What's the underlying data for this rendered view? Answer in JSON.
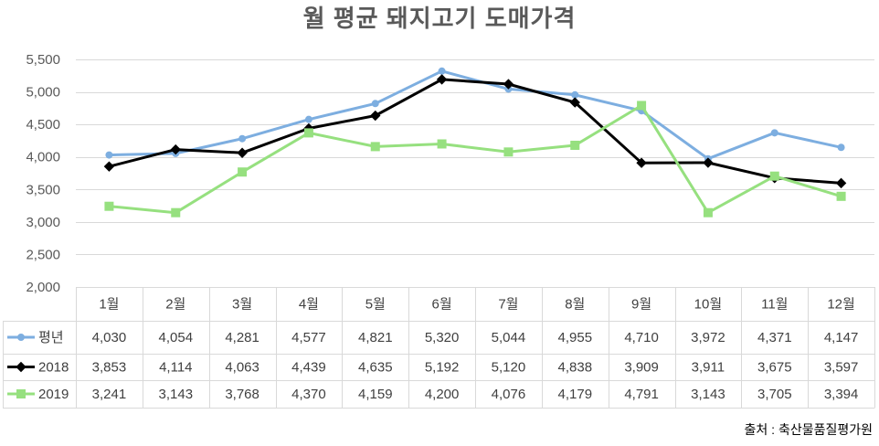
{
  "chart_data": {
    "type": "line",
    "title": "월 평균 돼지고기 도매가격",
    "categories": [
      "1월",
      "2월",
      "3월",
      "4월",
      "5월",
      "6월",
      "7월",
      "8월",
      "9월",
      "10월",
      "11월",
      "12월"
    ],
    "series": [
      {
        "name": "평년",
        "values": [
          4030,
          4054,
          4281,
          4577,
          4821,
          5320,
          5044,
          4955,
          4710,
          3972,
          4371,
          4147
        ],
        "color": "#7DAEE0",
        "marker": "circle"
      },
      {
        "name": "2018",
        "values": [
          3853,
          4114,
          4063,
          4439,
          4635,
          5192,
          5120,
          4838,
          3909,
          3911,
          3675,
          3597
        ],
        "color": "#000000",
        "marker": "diamond"
      },
      {
        "name": "2019",
        "values": [
          3241,
          3143,
          3768,
          4370,
          4159,
          4200,
          4076,
          4179,
          4791,
          3143,
          3705,
          3394
        ],
        "color": "#96E07F",
        "marker": "square"
      }
    ],
    "ylim": [
      2000,
      5500
    ],
    "yticks": [
      2000,
      2500,
      3000,
      3500,
      4000,
      4500,
      5000,
      5500
    ],
    "ytick_labels": [
      "2,000",
      "2,500",
      "3,000",
      "3,500",
      "4,000",
      "4,500",
      "5,000",
      "5,500"
    ],
    "grid": true,
    "data_table": true,
    "legend": "data-table"
  },
  "source": "출처 : 축산물품질평가원"
}
